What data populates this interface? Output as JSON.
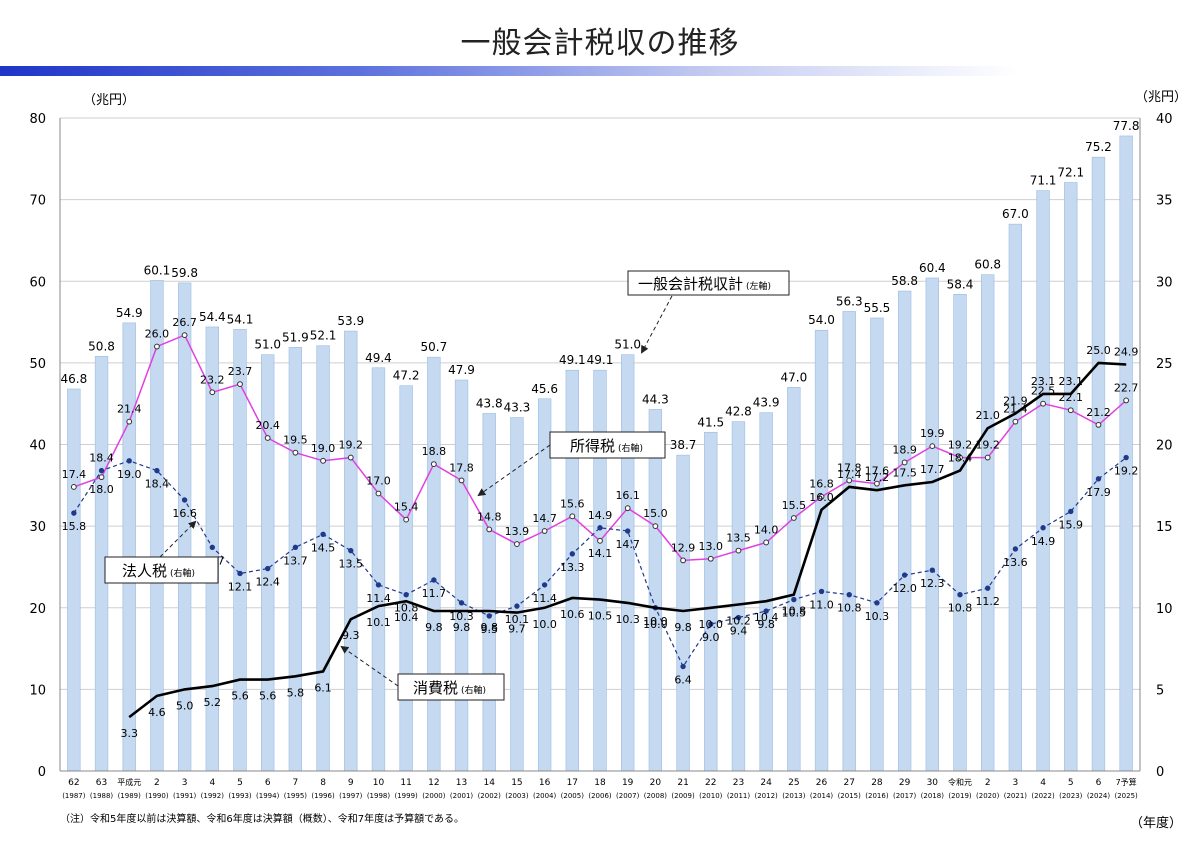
{
  "title": "一般会計税収の推移",
  "unit_left": "（兆円）",
  "unit_right": "（兆円）",
  "x_unit": "（年度）",
  "note": "（注）令和5年度以前は決算額、令和6年度は決算額（概数）、令和7年度は予算額である。",
  "callouts": {
    "total": "一般会計税収計",
    "total_axis": "(左軸)",
    "income": "所得税",
    "income_axis": "(右軸)",
    "corporate": "法人税",
    "corporate_axis": "(右軸)",
    "consumption": "消費税",
    "consumption_axis": "(右軸)"
  },
  "colors": {
    "bar_fill": "#c5d9f1",
    "bar_stroke": "#9bbbe0",
    "income_line": "#e040e0",
    "corporate_line": "#1f3a8a",
    "consumption_line": "#000000",
    "title_bar": "#1f35c8",
    "grid": "#cfcfcf"
  },
  "chart_data": {
    "type": "bar",
    "categories": [
      "62",
      "63",
      "平成元",
      "2",
      "3",
      "4",
      "5",
      "6",
      "7",
      "8",
      "9",
      "10",
      "11",
      "12",
      "13",
      "14",
      "15",
      "16",
      "17",
      "18",
      "19",
      "20",
      "21",
      "22",
      "23",
      "24",
      "25",
      "26",
      "27",
      "28",
      "29",
      "30",
      "令和元",
      "2",
      "3",
      "4",
      "5",
      "6",
      "7予算"
    ],
    "categories_sub": [
      "(1987)",
      "(1988)",
      "(1989)",
      "(1990)",
      "(1991)",
      "(1992)",
      "(1993)",
      "(1994)",
      "(1995)",
      "(1996)",
      "(1997)",
      "(1998)",
      "(1999)",
      "(2000)",
      "(2001)",
      "(2002)",
      "(2003)",
      "(2004)",
      "(2005)",
      "(2006)",
      "(2007)",
      "(2008)",
      "(2009)",
      "(2010)",
      "(2011)",
      "(2012)",
      "(2013)",
      "(2014)",
      "(2015)",
      "(2016)",
      "(2017)",
      "(2018)",
      "(2019)",
      "(2020)",
      "(2021)",
      "(2022)",
      "(2023)",
      "(2024)",
      "(2025)"
    ],
    "series": [
      {
        "name": "一般会計税収計",
        "axis": "left",
        "type": "bar",
        "values": [
          46.8,
          50.8,
          54.9,
          60.1,
          59.8,
          54.4,
          54.1,
          51.0,
          51.9,
          52.1,
          53.9,
          49.4,
          47.2,
          50.7,
          47.9,
          43.8,
          43.3,
          45.6,
          49.1,
          49.1,
          51.0,
          44.3,
          38.7,
          41.5,
          42.8,
          43.9,
          47.0,
          54.0,
          56.3,
          55.5,
          58.8,
          60.4,
          58.4,
          60.8,
          67.0,
          71.1,
          72.1,
          75.2,
          77.8
        ]
      },
      {
        "name": "所得税",
        "axis": "right",
        "type": "line",
        "values": [
          17.4,
          18.0,
          21.4,
          26.0,
          26.7,
          23.2,
          23.7,
          20.4,
          19.5,
          19.0,
          19.2,
          17.0,
          15.4,
          18.8,
          17.8,
          14.8,
          13.9,
          14.7,
          15.6,
          14.1,
          16.1,
          15.0,
          12.9,
          13.0,
          13.5,
          14.0,
          15.5,
          16.8,
          17.8,
          17.6,
          18.9,
          19.9,
          19.2,
          19.2,
          21.4,
          22.5,
          22.1,
          21.2,
          22.7
        ]
      },
      {
        "name": "法人税",
        "axis": "right",
        "type": "line",
        "values": [
          15.8,
          18.4,
          19.0,
          18.4,
          16.6,
          13.7,
          12.1,
          12.4,
          13.7,
          14.5,
          13.5,
          11.4,
          10.8,
          11.7,
          10.3,
          9.5,
          10.1,
          11.4,
          13.3,
          14.9,
          14.7,
          10.0,
          6.4,
          9.0,
          9.4,
          9.8,
          10.5,
          11.0,
          10.8,
          10.3,
          12.0,
          12.3,
          10.8,
          11.2,
          13.6,
          14.9,
          15.9,
          17.9,
          19.2
        ]
      },
      {
        "name": "消費税",
        "axis": "right",
        "type": "line",
        "values": [
          null,
          null,
          3.3,
          4.6,
          5.0,
          5.2,
          5.6,
          5.6,
          5.8,
          6.1,
          9.3,
          10.1,
          10.4,
          9.8,
          9.8,
          9.8,
          9.7,
          10.0,
          10.6,
          10.5,
          10.3,
          10.0,
          9.8,
          10.0,
          10.2,
          10.4,
          10.8,
          16.0,
          17.4,
          17.2,
          17.5,
          17.7,
          18.4,
          21.0,
          21.9,
          23.1,
          23.1,
          25.0,
          24.9
        ]
      }
    ],
    "ylim_left": [
      0,
      80
    ],
    "ylim_right": [
      0,
      40
    ],
    "yticks_left": [
      0,
      10,
      20,
      30,
      40,
      50,
      60,
      70,
      80
    ],
    "yticks_right": [
      0,
      5,
      10,
      15,
      20,
      25,
      30,
      35,
      40
    ],
    "grid": true
  }
}
